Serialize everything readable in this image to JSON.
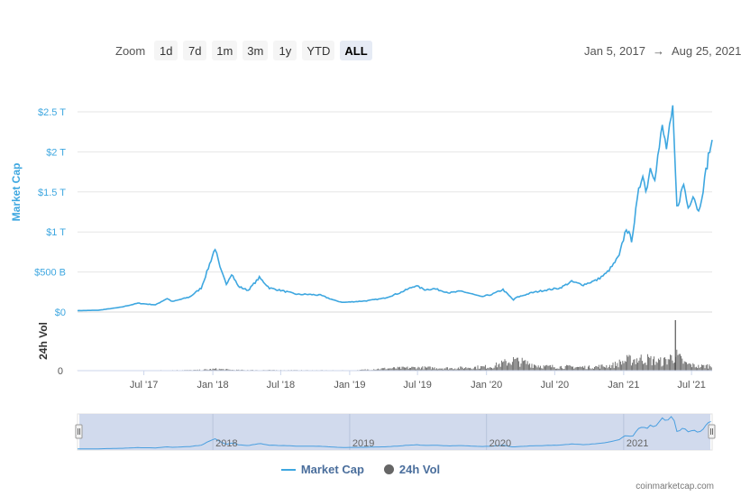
{
  "toolbar": {
    "zoom_label": "Zoom",
    "buttons": [
      "1d",
      "7d",
      "1m",
      "3m",
      "1y",
      "YTD",
      "ALL"
    ],
    "active": "ALL",
    "range_start": "Jan 5, 2017",
    "range_arrow": "→",
    "range_end": "Aug 25, 2021"
  },
  "legend": {
    "market_cap": "Market Cap",
    "volume": "24h Vol"
  },
  "credit": "coinmarketcap.com",
  "colors": {
    "market_cap": "#3ea7e0",
    "volume": "#666666",
    "navigator_fill": "#ccd6eb"
  },
  "chart_data": {
    "type": "line",
    "title": "",
    "ylabel": "Market Cap",
    "y_ticks": [
      "$0",
      "$500 B",
      "$1 T",
      "$1.5 T",
      "$2 T",
      "$2.5 T"
    ],
    "ylim": [
      0,
      2.5
    ],
    "y_unit": "T",
    "x_ticks": [
      "Jul '17",
      "Jan '18",
      "Jul '18",
      "Jan '19",
      "Jul '19",
      "Jan '20",
      "Jul '20",
      "Jan '21",
      "Jul '21"
    ],
    "xlim": [
      "2017-01-05",
      "2021-08-25"
    ],
    "series": [
      {
        "name": "Market Cap",
        "x": [
          "2017-01-05",
          "2017-03-01",
          "2017-05-01",
          "2017-06-15",
          "2017-08-01",
          "2017-09-01",
          "2017-09-15",
          "2017-11-01",
          "2017-12-01",
          "2017-12-20",
          "2018-01-07",
          "2018-01-20",
          "2018-02-06",
          "2018-02-20",
          "2018-03-10",
          "2018-04-05",
          "2018-05-05",
          "2018-06-01",
          "2018-07-01",
          "2018-08-15",
          "2018-09-15",
          "2018-10-15",
          "2018-11-25",
          "2018-12-15",
          "2019-01-15",
          "2019-02-15",
          "2019-04-01",
          "2019-05-15",
          "2019-06-26",
          "2019-07-20",
          "2019-08-15",
          "2019-09-25",
          "2019-10-26",
          "2019-11-20",
          "2019-12-18",
          "2020-01-15",
          "2020-02-14",
          "2020-03-13",
          "2020-03-20",
          "2020-04-30",
          "2020-06-01",
          "2020-07-15",
          "2020-08-15",
          "2020-09-15",
          "2020-10-21",
          "2020-11-15",
          "2020-12-01",
          "2020-12-20",
          "2021-01-08",
          "2021-01-22",
          "2021-02-10",
          "2021-02-21",
          "2021-03-01",
          "2021-03-13",
          "2021-03-25",
          "2021-04-14",
          "2021-04-25",
          "2021-05-12",
          "2021-05-23",
          "2021-06-10",
          "2021-06-22",
          "2021-07-05",
          "2021-07-20",
          "2021-08-05",
          "2021-08-15",
          "2021-08-25"
        ],
        "values": [
          0.018,
          0.022,
          0.06,
          0.11,
          0.09,
          0.17,
          0.13,
          0.19,
          0.3,
          0.55,
          0.8,
          0.55,
          0.35,
          0.48,
          0.32,
          0.27,
          0.43,
          0.3,
          0.27,
          0.22,
          0.22,
          0.21,
          0.14,
          0.12,
          0.13,
          0.14,
          0.17,
          0.24,
          0.33,
          0.28,
          0.29,
          0.24,
          0.26,
          0.23,
          0.19,
          0.22,
          0.28,
          0.15,
          0.18,
          0.24,
          0.27,
          0.3,
          0.38,
          0.34,
          0.4,
          0.48,
          0.57,
          0.7,
          1.05,
          0.9,
          1.5,
          1.75,
          1.5,
          1.8,
          1.7,
          2.3,
          2.05,
          2.5,
          1.3,
          1.6,
          1.3,
          1.48,
          1.25,
          1.65,
          1.95,
          2.15
        ]
      },
      {
        "name": "24h Vol",
        "x": [
          "2017-01-05",
          "2017-06-01",
          "2017-12-01",
          "2018-01-07",
          "2018-03-01",
          "2018-09-01",
          "2019-01-15",
          "2019-04-01",
          "2019-06-26",
          "2019-10-01",
          "2020-01-15",
          "2020-03-13",
          "2020-06-01",
          "2020-10-01",
          "2020-12-01",
          "2021-01-10",
          "2021-02-23",
          "2021-04-15",
          "2021-05-19",
          "2021-06-15",
          "2021-07-20",
          "2021-08-25"
        ],
        "values": [
          0.002,
          0.005,
          0.02,
          0.05,
          0.02,
          0.012,
          0.01,
          0.06,
          0.09,
          0.07,
          0.12,
          0.3,
          0.12,
          0.1,
          0.15,
          0.3,
          0.35,
          0.25,
          0.45,
          0.2,
          0.12,
          0.15
        ]
      }
    ],
    "vol_label": "24h Vol",
    "vol_ticks": [
      "0"
    ],
    "navigator_labels": [
      "2018",
      "2019",
      "2020",
      "2021"
    ],
    "legend_position": "bottom"
  }
}
